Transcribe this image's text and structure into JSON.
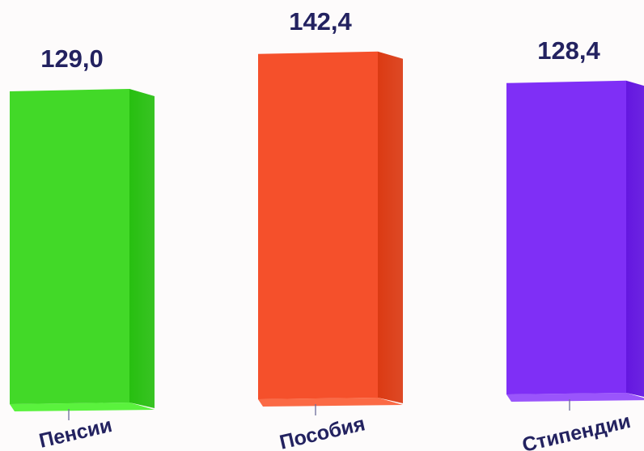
{
  "chart_data": {
    "type": "bar",
    "categories": [
      "Пенсии",
      "Пособия",
      "Стипендии"
    ],
    "values": [
      129.0,
      142.4,
      128.4
    ],
    "data_labels": [
      "129,0",
      "142,4",
      "128,4"
    ],
    "colors": {
      "front": [
        "#42d928",
        "#f5502b",
        "#7f2ff6"
      ],
      "side": [
        "#27bf10",
        "#db3a13",
        "#6417e0"
      ],
      "bottom": [
        "#5af23d",
        "#fb6a45",
        "#9a55fb"
      ]
    },
    "label_color": "#232260",
    "title": "",
    "xlabel": "",
    "ylabel": "",
    "grid": false,
    "legend": "none"
  }
}
